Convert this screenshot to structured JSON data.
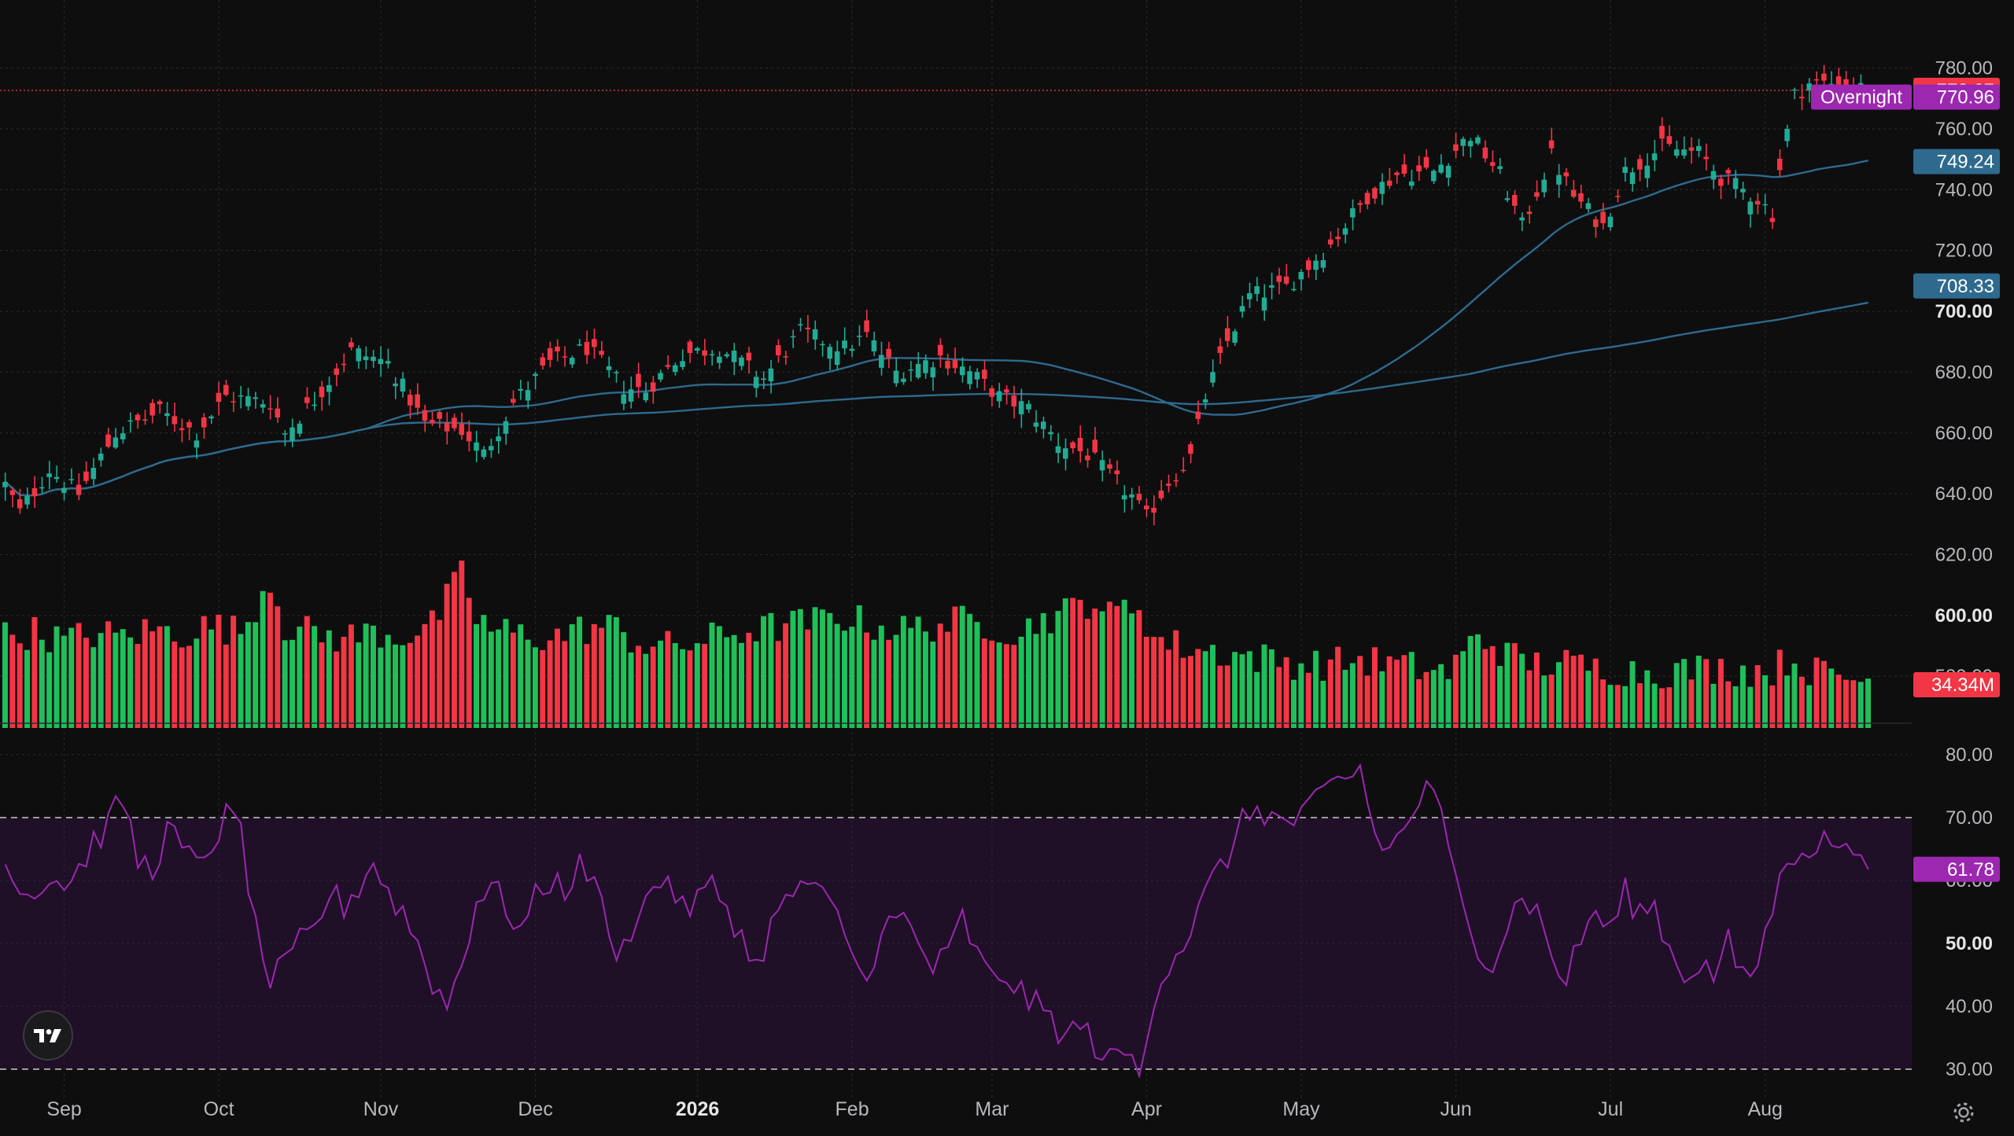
{
  "chart_data": {
    "type": "candlestick",
    "price_pane": {
      "y_ticks": [
        "780.00",
        "760.00",
        "740.00",
        "720.00",
        "700.00",
        "680.00",
        "660.00",
        "640.00",
        "620.00",
        "600.00",
        "580.00"
      ],
      "y_tick_values": [
        780,
        760,
        740,
        720,
        700,
        680,
        660,
        640,
        620,
        600,
        580
      ],
      "ylim": [
        563,
        791
      ],
      "last_price": {
        "value": 772.67,
        "label": "772.67",
        "color": "#f23645"
      },
      "overnight": {
        "label": "Overnight",
        "value": 770.96,
        "value_label": "770.96",
        "color": "#9c27b0"
      },
      "ma_fast": {
        "value": 749.24,
        "label": "749.24",
        "color": "#2e6a8e"
      },
      "ma_slow": {
        "value": 708.33,
        "label": "708.33",
        "color": "#2e6a8e"
      },
      "volume_label": {
        "value": "34.34M",
        "color": "#f23645"
      },
      "up_color": "#22ab94",
      "down_color": "#f23645",
      "volume_up_color": "#1fbf5a",
      "volume_down_color": "#f23645"
    },
    "rsi_pane": {
      "y_ticks": [
        "80.00",
        "70.00",
        "60.00",
        "50.00",
        "40.00",
        "30.00"
      ],
      "y_tick_values": [
        80,
        70,
        60,
        50,
        40,
        30
      ],
      "ylim": [
        25,
        85
      ],
      "band": [
        30,
        70
      ],
      "current": {
        "value": 61.78,
        "label": "61.78"
      },
      "line_color": "#9c27b0",
      "band_color": "#1f1027"
    },
    "x_axis": {
      "labels": [
        "Sep",
        "Oct",
        "Nov",
        "Dec",
        "2026",
        "Feb",
        "Mar",
        "Apr",
        "May",
        "Jun",
        "Jul",
        "Aug"
      ],
      "bold_label": "2026",
      "label_bar_index": [
        8,
        29,
        51,
        72,
        94,
        115,
        134,
        155,
        176,
        197,
        218,
        239
      ]
    },
    "anchors": {
      "close": [
        [
          0,
          643
        ],
        [
          2,
          634
        ],
        [
          6,
          648
        ],
        [
          10,
          640
        ],
        [
          15,
          660
        ],
        [
          21,
          667
        ],
        [
          26,
          660
        ],
        [
          30,
          672
        ],
        [
          36,
          670
        ],
        [
          38,
          660
        ],
        [
          42,
          671
        ],
        [
          47,
          687
        ],
        [
          52,
          683
        ],
        [
          57,
          663
        ],
        [
          62,
          661
        ],
        [
          65,
          653
        ],
        [
          69,
          670
        ],
        [
          74,
          683
        ],
        [
          79,
          688
        ],
        [
          84,
          675
        ],
        [
          87,
          674
        ],
        [
          92,
          686
        ],
        [
          97,
          688
        ],
        [
          103,
          678
        ],
        [
          108,
          693
        ],
        [
          114,
          688
        ],
        [
          117,
          692
        ],
        [
          121,
          680
        ],
        [
          127,
          685
        ],
        [
          131,
          680
        ],
        [
          135,
          672
        ],
        [
          139,
          668
        ],
        [
          143,
          657
        ],
        [
          147,
          653
        ],
        [
          150,
          646
        ],
        [
          153,
          639
        ],
        [
          155,
          632
        ],
        [
          158,
          644
        ],
        [
          161,
          652
        ],
        [
          163,
          672
        ],
        [
          166,
          690
        ],
        [
          169,
          705
        ],
        [
          174,
          708
        ],
        [
          180,
          722
        ],
        [
          185,
          738
        ],
        [
          189,
          745
        ],
        [
          194,
          746
        ],
        [
          199,
          758
        ],
        [
          203,
          745
        ],
        [
          206,
          728
        ],
        [
          210,
          751
        ],
        [
          213,
          738
        ],
        [
          217,
          728
        ],
        [
          220,
          746
        ],
        [
          225,
          754
        ],
        [
          230,
          752
        ],
        [
          233,
          744
        ],
        [
          238,
          737
        ],
        [
          240,
          732
        ],
        [
          241,
          747
        ],
        [
          243,
          771
        ],
        [
          245,
          775
        ],
        [
          249,
          775
        ],
        [
          251,
          774
        ],
        [
          253,
          772.67
        ]
      ],
      "rsi": [
        [
          0,
          65
        ],
        [
          2,
          58
        ],
        [
          6,
          60
        ],
        [
          9,
          60
        ],
        [
          12,
          66
        ],
        [
          14,
          69
        ],
        [
          16,
          73
        ],
        [
          18,
          63
        ],
        [
          20,
          62
        ],
        [
          22,
          68
        ],
        [
          26,
          62
        ],
        [
          28,
          66
        ],
        [
          30,
          70
        ],
        [
          32,
          68
        ],
        [
          34,
          52
        ],
        [
          36,
          44
        ],
        [
          38,
          46
        ],
        [
          40,
          50
        ],
        [
          42,
          52
        ],
        [
          44,
          58
        ],
        [
          46,
          56
        ],
        [
          48,
          59
        ],
        [
          50,
          63
        ],
        [
          52,
          58
        ],
        [
          54,
          55
        ],
        [
          56,
          50
        ],
        [
          58,
          44
        ],
        [
          60,
          40
        ],
        [
          62,
          47
        ],
        [
          64,
          57
        ],
        [
          66,
          59
        ],
        [
          68,
          56
        ],
        [
          70,
          52
        ],
        [
          72,
          57
        ],
        [
          74,
          60
        ],
        [
          76,
          59
        ],
        [
          78,
          62
        ],
        [
          80,
          61
        ],
        [
          82,
          50
        ],
        [
          84,
          49
        ],
        [
          86,
          56
        ],
        [
          88,
          58
        ],
        [
          90,
          61
        ],
        [
          92,
          55
        ],
        [
          94,
          57
        ],
        [
          96,
          59
        ],
        [
          98,
          56
        ],
        [
          100,
          51
        ],
        [
          102,
          46
        ],
        [
          104,
          53
        ],
        [
          106,
          56
        ],
        [
          108,
          60
        ],
        [
          110,
          58
        ],
        [
          112,
          56
        ],
        [
          114,
          52
        ],
        [
          116,
          45
        ],
        [
          118,
          48
        ],
        [
          120,
          53
        ],
        [
          122,
          54
        ],
        [
          124,
          50
        ],
        [
          126,
          46
        ],
        [
          128,
          48
        ],
        [
          130,
          54
        ],
        [
          132,
          48
        ],
        [
          134,
          44
        ],
        [
          136,
          45
        ],
        [
          138,
          42
        ],
        [
          140,
          40
        ],
        [
          142,
          38
        ],
        [
          144,
          35
        ],
        [
          146,
          37
        ],
        [
          148,
          34
        ],
        [
          150,
          31
        ],
        [
          152,
          33
        ],
        [
          154,
          29
        ],
        [
          156,
          42
        ],
        [
          158,
          47
        ],
        [
          160,
          50
        ],
        [
          162,
          55
        ],
        [
          164,
          60
        ],
        [
          166,
          64
        ],
        [
          168,
          69
        ],
        [
          170,
          72
        ],
        [
          172,
          70
        ],
        [
          174,
          69
        ],
        [
          176,
          70
        ],
        [
          178,
          72
        ],
        [
          180,
          75
        ],
        [
          182,
          76
        ],
        [
          184,
          78
        ],
        [
          186,
          67
        ],
        [
          188,
          65
        ],
        [
          190,
          68
        ],
        [
          192,
          73
        ],
        [
          194,
          75
        ],
        [
          196,
          64
        ],
        [
          198,
          55
        ],
        [
          200,
          50
        ],
        [
          202,
          47
        ],
        [
          204,
          53
        ],
        [
          206,
          58
        ],
        [
          208,
          55
        ],
        [
          210,
          48
        ],
        [
          212,
          44
        ],
        [
          214,
          51
        ],
        [
          216,
          55
        ],
        [
          218,
          52
        ],
        [
          220,
          58
        ],
        [
          222,
          55
        ],
        [
          224,
          56
        ],
        [
          226,
          49
        ],
        [
          228,
          45
        ],
        [
          230,
          47
        ],
        [
          232,
          45
        ],
        [
          234,
          50
        ],
        [
          236,
          44
        ],
        [
          238,
          47
        ],
        [
          240,
          56
        ],
        [
          242,
          63
        ],
        [
          244,
          66
        ],
        [
          246,
          65
        ],
        [
          248,
          67
        ],
        [
          250,
          64
        ],
        [
          252,
          66
        ],
        [
          253,
          61.78
        ]
      ],
      "volume": [
        [
          0,
          43
        ],
        [
          4,
          45
        ],
        [
          8,
          41
        ],
        [
          12,
          44
        ],
        [
          16,
          43
        ],
        [
          20,
          46
        ],
        [
          24,
          44
        ],
        [
          28,
          48
        ],
        [
          32,
          45
        ],
        [
          36,
          70
        ],
        [
          38,
          48
        ],
        [
          42,
          44
        ],
        [
          46,
          42
        ],
        [
          50,
          45
        ],
        [
          54,
          43
        ],
        [
          58,
          48
        ],
        [
          62,
          72
        ],
        [
          64,
          52
        ],
        [
          66,
          46
        ],
        [
          70,
          44
        ],
        [
          74,
          42
        ],
        [
          78,
          46
        ],
        [
          82,
          48
        ],
        [
          86,
          40
        ],
        [
          90,
          38
        ],
        [
          94,
          40
        ],
        [
          98,
          44
        ],
        [
          102,
          46
        ],
        [
          106,
          48
        ],
        [
          110,
          50
        ],
        [
          114,
          52
        ],
        [
          118,
          48
        ],
        [
          122,
          46
        ],
        [
          126,
          48
        ],
        [
          130,
          50
        ],
        [
          134,
          48
        ],
        [
          138,
          44
        ],
        [
          140,
          50
        ],
        [
          142,
          52
        ],
        [
          144,
          54
        ],
        [
          146,
          58
        ],
        [
          148,
          60
        ],
        [
          150,
          52
        ],
        [
          152,
          56
        ],
        [
          154,
          58
        ],
        [
          156,
          42
        ],
        [
          160,
          38
        ],
        [
          164,
          36
        ],
        [
          168,
          34
        ],
        [
          172,
          32
        ],
        [
          176,
          30
        ],
        [
          180,
          30
        ],
        [
          184,
          32
        ],
        [
          188,
          30
        ],
        [
          192,
          28
        ],
        [
          196,
          26
        ],
        [
          198,
          34
        ],
        [
          200,
          44
        ],
        [
          204,
          34
        ],
        [
          208,
          30
        ],
        [
          212,
          30
        ],
        [
          216,
          28
        ],
        [
          220,
          27
        ],
        [
          224,
          26
        ],
        [
          228,
          27
        ],
        [
          232,
          28
        ],
        [
          236,
          27
        ],
        [
          240,
          27
        ],
        [
          242,
          32
        ],
        [
          246,
          26
        ],
        [
          250,
          24
        ],
        [
          253,
          22
        ]
      ]
    },
    "n_bars": 254,
    "volume_scale_max": 100
  }
}
